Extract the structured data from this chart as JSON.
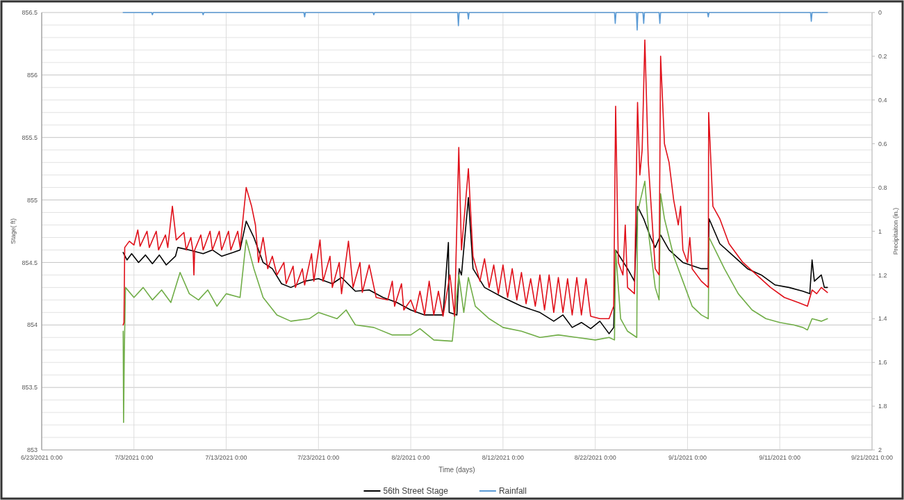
{
  "chart_data": {
    "type": "line",
    "xlabel": "Time (days)",
    "ylabel": "Stage( ft)",
    "y2label": "Precipitaiton (in.)",
    "xlim": [
      "2021-06-23",
      "2021-09-21"
    ],
    "xticks": [
      {
        "value": "2021-06-23",
        "label": "6/23/2021 0:00"
      },
      {
        "value": "2021-07-03",
        "label": "7/3/2021 0:00"
      },
      {
        "value": "2021-07-13",
        "label": "7/13/2021 0:00"
      },
      {
        "value": "2021-07-23",
        "label": "7/23/2021 0:00"
      },
      {
        "value": "2021-08-02",
        "label": "8/2/2021 0:00"
      },
      {
        "value": "2021-08-12",
        "label": "8/12/2021 0:00"
      },
      {
        "value": "2021-08-22",
        "label": "8/22/2021 0:00"
      },
      {
        "value": "2021-09-01",
        "label": "9/1/2021 0:00"
      },
      {
        "value": "2021-09-11",
        "label": "9/11/2021 0:00"
      },
      {
        "value": "2021-09-21",
        "label": "9/21/2021 0:00"
      }
    ],
    "ylim": [
      853,
      856.5
    ],
    "yticks": [
      853,
      {
        "value": 853.1,
        "label": null
      },
      {
        "value": 853.2,
        "label": null
      },
      {
        "value": 853.3,
        "label": null
      },
      {
        "value": 853.4,
        "label": null
      },
      853.5,
      {
        "value": 853.6,
        "label": null
      },
      {
        "value": 853.7,
        "label": null
      },
      {
        "value": 853.8,
        "label": null
      },
      {
        "value": 853.9,
        "label": null
      },
      854,
      {
        "value": 854.1,
        "label": null
      },
      {
        "value": 854.2,
        "label": null
      },
      {
        "value": 854.3,
        "label": null
      },
      {
        "value": 854.4,
        "label": null
      },
      854.5,
      {
        "value": 854.6,
        "label": null
      },
      {
        "value": 854.7,
        "label": null
      },
      {
        "value": 854.8,
        "label": null
      },
      {
        "value": 854.9,
        "label": null
      },
      855,
      {
        "value": 855.1,
        "label": null
      },
      {
        "value": 855.2,
        "label": null
      },
      {
        "value": 855.3,
        "label": null
      },
      {
        "value": 855.4,
        "label": null
      },
      855.5,
      {
        "value": 855.6,
        "label": null
      },
      {
        "value": 855.7,
        "label": null
      },
      {
        "value": 855.8,
        "label": null
      },
      {
        "value": 855.9,
        "label": null
      },
      856,
      {
        "value": 856.1,
        "label": null
      },
      {
        "value": 856.2,
        "label": null
      },
      {
        "value": 856.3,
        "label": null
      },
      {
        "value": 856.4,
        "label": null
      },
      856.5
    ],
    "y2lim": [
      2,
      0
    ],
    "y2ticks": [
      0,
      0.2,
      0.4,
      0.6,
      0.8,
      1,
      1.2,
      1.4,
      1.6,
      1.8,
      2
    ],
    "grid": true,
    "legend": "bottom",
    "line_style": "solid",
    "series": [
      {
        "name": "56th Street Stage",
        "color": "#000000",
        "x": [
          "2021-07-01T20:00",
          "2021-07-02T06:00",
          "2021-07-02T18:00",
          "2021-07-03T12:00",
          "2021-07-04T06:00",
          "2021-07-05T00:00",
          "2021-07-05T18:00",
          "2021-07-06T12:00",
          "2021-07-07T12:00",
          "2021-07-07T18:00",
          "2021-07-09T00:00",
          "2021-07-10T12:00",
          "2021-07-11T12:00",
          "2021-07-12T12:00",
          "2021-07-13T18:00",
          "2021-07-14T12:00",
          "2021-07-15T04:00",
          "2021-07-16T00:00",
          "2021-07-17T00:00",
          "2021-07-18T00:00",
          "2021-07-19T00:00",
          "2021-07-20T00:00",
          "2021-07-21T12:00",
          "2021-07-23T00:00",
          "2021-07-24T12:00",
          "2021-07-25T12:00",
          "2021-07-27T00:00",
          "2021-07-28T12:00",
          "2021-07-30T00:00",
          "2021-07-31T12:00",
          "2021-08-02T00:00",
          "2021-08-03T12:00",
          "2021-08-05T12:00",
          "2021-08-06T02:00",
          "2021-08-06T04:00",
          "2021-08-07T00:00",
          "2021-08-07T06:00",
          "2021-08-07T12:00",
          "2021-08-08T06:00",
          "2021-08-08T18:00",
          "2021-08-10T00:00",
          "2021-08-12T00:00",
          "2021-08-14T00:00",
          "2021-08-16T00:00",
          "2021-08-17T12:00",
          "2021-08-18T12:00",
          "2021-08-19T12:00",
          "2021-08-20T12:00",
          "2021-08-21T12:00",
          "2021-08-22T12:00",
          "2021-08-23T12:00",
          "2021-08-24T00:00",
          "2021-08-24T05:00",
          "2021-08-25T12:00",
          "2021-08-26T06:00",
          "2021-08-26T14:00",
          "2021-08-27T06:00",
          "2021-08-28T00:00",
          "2021-08-28T12:00",
          "2021-08-29T02:00",
          "2021-08-30T00:00",
          "2021-08-31T12:00",
          "2021-09-02T12:00",
          "2021-09-03T06:00",
          "2021-09-03T08:00",
          "2021-09-04T12:00",
          "2021-09-06T00:00",
          "2021-09-07T12:00",
          "2021-09-09T00:00",
          "2021-09-10T12:00",
          "2021-09-12T00:00",
          "2021-09-13T12:00",
          "2021-09-14T06:00",
          "2021-09-14T12:00",
          "2021-09-14T18:00",
          "2021-09-15T12:00",
          "2021-09-15T20:00",
          "2021-09-16T04:00"
        ],
        "values": [
          854.58,
          854.52,
          854.57,
          854.5,
          854.56,
          854.49,
          854.56,
          854.48,
          854.55,
          854.62,
          854.6,
          854.57,
          854.6,
          854.55,
          854.58,
          854.6,
          854.83,
          854.7,
          854.5,
          854.45,
          854.33,
          854.3,
          854.35,
          854.37,
          854.33,
          854.38,
          854.27,
          854.28,
          854.22,
          854.18,
          854.12,
          854.08,
          854.08,
          854.66,
          854.1,
          854.08,
          854.45,
          854.4,
          855.02,
          854.45,
          854.3,
          854.22,
          854.15,
          854.1,
          854.03,
          854.08,
          853.98,
          854.02,
          853.97,
          854.03,
          853.93,
          853.98,
          854.6,
          854.45,
          854.35,
          854.95,
          854.85,
          854.7,
          854.62,
          854.72,
          854.6,
          854.5,
          854.45,
          854.45,
          854.85,
          854.65,
          854.55,
          854.45,
          854.4,
          854.32,
          854.3,
          854.27,
          854.25,
          854.52,
          854.35,
          854.4,
          854.3,
          854.3
        ]
      },
      {
        "color": "#70ad47",
        "x": [
          "2021-07-01T20:00",
          "2021-07-01T21:00",
          "2021-07-01T23:00",
          "2021-07-02T02:00",
          "2021-07-03T00:00",
          "2021-07-04T00:00",
          "2021-07-05T00:00",
          "2021-07-06T00:00",
          "2021-07-07T00:00",
          "2021-07-08T00:00",
          "2021-07-09T00:00",
          "2021-07-10T00:00",
          "2021-07-11T00:00",
          "2021-07-12T00:00",
          "2021-07-13T00:00",
          "2021-07-14T12:00",
          "2021-07-15T04:00",
          "2021-07-16T00:00",
          "2021-07-17T00:00",
          "2021-07-18T12:00",
          "2021-07-20T00:00",
          "2021-07-22T00:00",
          "2021-07-23T00:00",
          "2021-07-25T00:00",
          "2021-07-26T00:00",
          "2021-07-27T00:00",
          "2021-07-29T00:00",
          "2021-07-31T00:00",
          "2021-08-02T00:00",
          "2021-08-03T00:00",
          "2021-08-04T12:00",
          "2021-08-06T12:00",
          "2021-08-07T05:00",
          "2021-08-07T18:00",
          "2021-08-08T06:00",
          "2021-08-09T00:00",
          "2021-08-10T12:00",
          "2021-08-12T00:00",
          "2021-08-14T00:00",
          "2021-08-16T00:00",
          "2021-08-18T00:00",
          "2021-08-20T00:00",
          "2021-08-22T00:00",
          "2021-08-23T12:00",
          "2021-08-24T02:00",
          "2021-08-24T05:00",
          "2021-08-24T18:00",
          "2021-08-25T12:00",
          "2021-08-26T12:00",
          "2021-08-26T14:00",
          "2021-08-27T09:00",
          "2021-08-27T20:00",
          "2021-08-28T12:00",
          "2021-08-28T22:00",
          "2021-08-29T02:00",
          "2021-08-29T12:00",
          "2021-08-30T12:00",
          "2021-08-31T12:00",
          "2021-09-01T12:00",
          "2021-09-02T12:00",
          "2021-09-03T06:00",
          "2021-09-03T08:00",
          "2021-09-04T00:00",
          "2021-09-05T00:00",
          "2021-09-06T12:00",
          "2021-09-08T00:00",
          "2021-09-09T12:00",
          "2021-09-11T00:00",
          "2021-09-12T12:00",
          "2021-09-13T12:00",
          "2021-09-14T00:00",
          "2021-09-14T12:00",
          "2021-09-15T12:00",
          "2021-09-16T04:00"
        ],
        "values": [
          853.95,
          853.22,
          853.8,
          854.3,
          854.22,
          854.3,
          854.2,
          854.28,
          854.18,
          854.42,
          854.25,
          854.2,
          854.28,
          854.15,
          854.25,
          854.22,
          854.68,
          854.45,
          854.22,
          854.08,
          854.03,
          854.05,
          854.1,
          854.05,
          854.12,
          854,
          853.98,
          853.92,
          853.92,
          853.97,
          853.88,
          853.87,
          854.4,
          854.1,
          854.38,
          854.15,
          854.05,
          853.98,
          853.95,
          853.9,
          853.92,
          853.9,
          853.88,
          853.9,
          853.88,
          854.6,
          854.05,
          853.95,
          853.9,
          854.9,
          855.15,
          854.7,
          854.3,
          854.2,
          855.05,
          854.85,
          854.55,
          854.35,
          854.15,
          854.08,
          854.05,
          854.7,
          854.6,
          854.45,
          854.25,
          854.12,
          854.05,
          854.02,
          854,
          853.98,
          853.96,
          854.05,
          854.03,
          854.05
        ]
      },
      {
        "color": "#e0101a",
        "x": [
          "2021-07-01T20:00",
          "2021-07-01T22:00",
          "2021-07-02T00:00",
          "2021-07-02T12:00",
          "2021-07-03T00:00",
          "2021-07-03T10:00",
          "2021-07-03T16:00",
          "2021-07-04T10:00",
          "2021-07-04T16:00",
          "2021-07-05T10:00",
          "2021-07-05T16:00",
          "2021-07-06T10:00",
          "2021-07-06T16:00",
          "2021-07-07T04:00",
          "2021-07-07T14:00",
          "2021-07-08T10:00",
          "2021-07-08T16:00",
          "2021-07-09T04:00",
          "2021-07-09T10:00",
          "2021-07-09T12:00",
          "2021-07-09T14:00",
          "2021-07-10T06:00",
          "2021-07-10T12:00",
          "2021-07-11T06:00",
          "2021-07-11T12:00",
          "2021-07-12T06:00",
          "2021-07-12T12:00",
          "2021-07-13T06:00",
          "2021-07-13T12:00",
          "2021-07-14T06:00",
          "2021-07-14T12:00",
          "2021-07-15T04:00",
          "2021-07-15T18:00",
          "2021-07-16T04:00",
          "2021-07-16T12:00",
          "2021-07-17T00:00",
          "2021-07-17T12:00",
          "2021-07-18T00:00",
          "2021-07-18T12:00",
          "2021-07-19T06:00",
          "2021-07-19T12:00",
          "2021-07-20T06:00",
          "2021-07-20T12:00",
          "2021-07-21T06:00",
          "2021-07-21T12:00",
          "2021-07-22T06:00",
          "2021-07-22T12:00",
          "2021-07-23T04:00",
          "2021-07-23T12:00",
          "2021-07-24T06:00",
          "2021-07-24T12:00",
          "2021-07-25T06:00",
          "2021-07-25T12:00",
          "2021-07-26T06:00",
          "2021-07-26T18:00",
          "2021-07-27T12:00",
          "2021-07-27T18:00",
          "2021-07-28T12:00",
          "2021-07-29T06:00",
          "2021-07-30T12:00",
          "2021-07-31T00:00",
          "2021-07-31T06:00",
          "2021-08-01T00:00",
          "2021-08-01T06:00",
          "2021-08-02T00:00",
          "2021-08-02T12:00",
          "2021-08-03T00:00",
          "2021-08-03T12:00",
          "2021-08-04T00:00",
          "2021-08-04T12:00",
          "2021-08-05T00:00",
          "2021-08-05T12:00",
          "2021-08-06T06:00",
          "2021-08-06T18:00",
          "2021-08-07T05:00",
          "2021-08-07T12:00",
          "2021-08-08T06:00",
          "2021-08-08T18:00",
          "2021-08-09T12:00",
          "2021-08-10T00:00",
          "2021-08-10T12:00",
          "2021-08-11T00:00",
          "2021-08-11T12:00",
          "2021-08-12T00:00",
          "2021-08-12T12:00",
          "2021-08-13T00:00",
          "2021-08-13T12:00",
          "2021-08-14T00:00",
          "2021-08-14T12:00",
          "2021-08-15T00:00",
          "2021-08-15T12:00",
          "2021-08-16T00:00",
          "2021-08-16T12:00",
          "2021-08-17T00:00",
          "2021-08-17T12:00",
          "2021-08-18T00:00",
          "2021-08-18T12:00",
          "2021-08-19T00:00",
          "2021-08-19T12:00",
          "2021-08-20T00:00",
          "2021-08-20T12:00",
          "2021-08-21T00:00",
          "2021-08-21T12:00",
          "2021-08-22T12:00",
          "2021-08-23T12:00",
          "2021-08-24T00:00",
          "2021-08-24T05:00",
          "2021-08-24T12:00",
          "2021-08-25T00:00",
          "2021-08-25T06:00",
          "2021-08-25T12:00",
          "2021-08-26T06:00",
          "2021-08-26T14:00",
          "2021-08-26T20:00",
          "2021-08-27T02:00",
          "2021-08-27T09:00",
          "2021-08-27T18:00",
          "2021-08-28T12:00",
          "2021-08-28T22:00",
          "2021-08-29T02:00",
          "2021-08-29T12:00",
          "2021-08-30T00:00",
          "2021-08-30T12:00",
          "2021-08-31T00:00",
          "2021-08-31T06:00",
          "2021-08-31T12:00",
          "2021-09-01T00:00",
          "2021-09-01T06:00",
          "2021-09-01T12:00",
          "2021-09-02T12:00",
          "2021-09-03T06:00",
          "2021-09-03T07:00",
          "2021-09-03T18:00",
          "2021-09-04T12:00",
          "2021-09-05T12:00",
          "2021-09-07T00:00",
          "2021-09-08T12:00",
          "2021-09-10T00:00",
          "2021-09-11T12:00",
          "2021-09-13T00:00",
          "2021-09-14T00:00",
          "2021-09-14T12:00",
          "2021-09-15T00:00",
          "2021-09-15T12:00",
          "2021-09-16T04:00"
        ],
        "values": [
          854,
          854.02,
          854.62,
          854.67,
          854.64,
          854.76,
          854.63,
          854.75,
          854.62,
          854.75,
          854.6,
          854.72,
          854.62,
          854.95,
          854.68,
          854.74,
          854.6,
          854.7,
          854.58,
          854.4,
          854.6,
          854.72,
          854.6,
          854.75,
          854.6,
          854.75,
          854.6,
          854.75,
          854.6,
          854.75,
          854.62,
          855.1,
          854.95,
          854.8,
          854.5,
          854.7,
          854.45,
          854.55,
          854.4,
          854.5,
          854.33,
          854.47,
          854.3,
          854.45,
          854.32,
          854.57,
          854.35,
          854.68,
          854.35,
          854.55,
          854.3,
          854.5,
          854.25,
          854.67,
          854.3,
          854.5,
          854.26,
          854.48,
          854.22,
          854.2,
          854.35,
          854.15,
          854.33,
          854.12,
          854.2,
          854.1,
          854.27,
          854.08,
          854.35,
          854.08,
          854.27,
          854.07,
          854.4,
          854.07,
          855.42,
          854.6,
          855.25,
          854.55,
          854.35,
          854.53,
          854.3,
          854.48,
          854.25,
          854.48,
          854.22,
          854.45,
          854.2,
          854.42,
          854.17,
          854.37,
          854.15,
          854.4,
          854.12,
          854.4,
          854.1,
          854.38,
          854.1,
          854.37,
          854.08,
          854.38,
          854.08,
          854.37,
          854.07,
          854.05,
          854.05,
          854.15,
          855.75,
          854.5,
          854.4,
          854.8,
          854.3,
          854.25,
          855.78,
          855.2,
          855.4,
          856.28,
          855.3,
          854.45,
          854.4,
          856.15,
          855.45,
          855.3,
          855,
          854.8,
          854.95,
          854.6,
          854.5,
          854.7,
          854.45,
          854.35,
          854.3,
          855.7,
          854.95,
          854.85,
          854.65,
          854.5,
          854.4,
          854.3,
          854.22,
          854.18,
          854.15,
          854.28,
          854.25,
          854.3,
          854.26
        ]
      },
      {
        "name": "Rainfall",
        "color": "#5b9bd5",
        "axis": "y2",
        "x": [
          "2021-07-01T20:00",
          "2021-07-04T22:00",
          "2021-07-05T00:00",
          "2021-07-05T02:00",
          "2021-07-10T10:00",
          "2021-07-10T12:00",
          "2021-07-10T14:00",
          "2021-07-21T10:00",
          "2021-07-21T12:00",
          "2021-07-21T14:00",
          "2021-07-28T22:00",
          "2021-07-29T00:00",
          "2021-07-29T02:00",
          "2021-08-07T02:00",
          "2021-08-07T04:00",
          "2021-08-07T06:00",
          "2021-08-08T04:00",
          "2021-08-08T06:00",
          "2021-08-08T08:00",
          "2021-08-24T02:00",
          "2021-08-24T04:00",
          "2021-08-24T06:00",
          "2021-08-26T11:00",
          "2021-08-26T13:00",
          "2021-08-26T15:00",
          "2021-08-27T04:00",
          "2021-08-27T06:00",
          "2021-08-27T08:00",
          "2021-08-28T22:00",
          "2021-08-29T00:00",
          "2021-08-29T02:00",
          "2021-09-03T04:00",
          "2021-09-03T06:00",
          "2021-09-03T08:00",
          "2021-09-14T08:00",
          "2021-09-14T10:00",
          "2021-09-14T12:00",
          "2021-09-16T04:00"
        ],
        "values": [
          0,
          0,
          0.01,
          0,
          0,
          0.01,
          0,
          0,
          0.02,
          0,
          0,
          0.01,
          0,
          0,
          0.06,
          0,
          0,
          0.03,
          0,
          0,
          0.05,
          0,
          0,
          0.08,
          0,
          0,
          0.05,
          0,
          0,
          0.05,
          0,
          0,
          0.02,
          0,
          0,
          0.04,
          0,
          0
        ]
      }
    ]
  }
}
